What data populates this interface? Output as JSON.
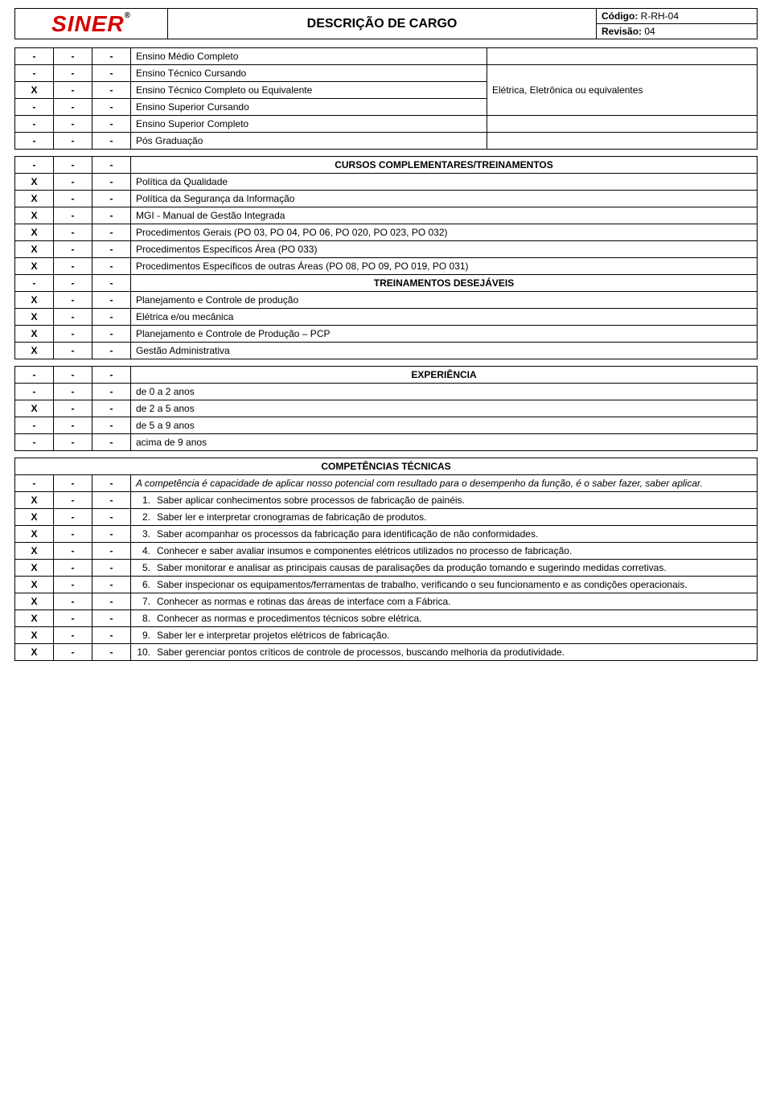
{
  "header": {
    "logo": "SINER",
    "logo_r": "®",
    "title": "DESCRIÇÃO DE CARGO",
    "codigo_label": "Código:",
    "codigo_value": "R-RH-04",
    "revisao_label": "Revisão:",
    "revisao_value": "04"
  },
  "education": {
    "rows": [
      {
        "c1": "-",
        "c2": "-",
        "c3": "-",
        "label": "Ensino Médio Completo",
        "extra": ""
      },
      {
        "c1": "-",
        "c2": "-",
        "c3": "-",
        "label": "Ensino Técnico Cursando",
        "extra": null
      },
      {
        "c1": "X",
        "c2": "-",
        "c3": "-",
        "label": "Ensino Técnico Completo ou Equivalente",
        "extra": "Elétrica, Eletrônica ou equivalentes"
      },
      {
        "c1": "-",
        "c2": "-",
        "c3": "-",
        "label": "Ensino Superior Cursando",
        "extra": null
      },
      {
        "c1": "-",
        "c2": "-",
        "c3": "-",
        "label": "Ensino Superior Completo",
        "extra": ""
      },
      {
        "c1": "-",
        "c2": "-",
        "c3": "-",
        "label": "Pós Graduação",
        "extra": ""
      }
    ]
  },
  "courses": {
    "header": "CURSOS COMPLEMENTARES/TREINAMENTOS",
    "header_marks": [
      "-",
      "-",
      "-"
    ],
    "rows": [
      {
        "c1": "X",
        "c2": "-",
        "c3": "-",
        "label": "Política da Qualidade"
      },
      {
        "c1": "X",
        "c2": "-",
        "c3": "-",
        "label": "Política da Segurança da Informação"
      },
      {
        "c1": "X",
        "c2": "-",
        "c3": "-",
        "label": "MGI - Manual de Gestão Integrada"
      },
      {
        "c1": "X",
        "c2": "-",
        "c3": "-",
        "label": "Procedimentos Gerais (PO 03, PO 04, PO 06, PO 020, PO 023, PO 032)"
      },
      {
        "c1": "X",
        "c2": "-",
        "c3": "-",
        "label": "Procedimentos Específicos Área (PO 033)"
      },
      {
        "c1": "X",
        "c2": "-",
        "c3": "-",
        "label": "Procedimentos Específicos de outras Áreas (PO 08, PO 09, PO 019, PO 031)"
      }
    ],
    "subheader": "TREINAMENTOS DESEJÁVEIS",
    "subheader_marks": [
      "-",
      "-",
      "-"
    ],
    "rows2": [
      {
        "c1": "X",
        "c2": "-",
        "c3": "-",
        "label": "Planejamento e Controle de produção"
      },
      {
        "c1": "X",
        "c2": "-",
        "c3": "-",
        "label": "Elétrica e/ou mecânica"
      },
      {
        "c1": "X",
        "c2": "-",
        "c3": "-",
        "label": "Planejamento e Controle de Produção – PCP"
      },
      {
        "c1": "X",
        "c2": "-",
        "c3": "-",
        "label": "Gestão Administrativa"
      }
    ]
  },
  "experience": {
    "header": "EXPERIÊNCIA",
    "header_marks": [
      "-",
      "-",
      "-"
    ],
    "rows": [
      {
        "c1": "-",
        "c2": "-",
        "c3": "-",
        "label": "de 0 a 2 anos"
      },
      {
        "c1": "X",
        "c2": "-",
        "c3": "-",
        "label": "de 2 a 5 anos"
      },
      {
        "c1": "-",
        "c2": "-",
        "c3": "-",
        "label": "de 5 a 9 anos"
      },
      {
        "c1": "-",
        "c2": "-",
        "c3": "-",
        "label": "acima de 9 anos"
      }
    ]
  },
  "competencies": {
    "header": "COMPETÊNCIAS TÉCNICAS",
    "intro_marks": [
      "-",
      "-",
      "-"
    ],
    "intro": "A competência é capacidade de aplicar nosso potencial com resultado para o desempenho da função, é o saber fazer, saber aplicar.",
    "rows": [
      {
        "c1": "X",
        "c2": "-",
        "c3": "-",
        "n": "1.",
        "text": "Saber aplicar conhecimentos sobre processos de fabricação de painéis."
      },
      {
        "c1": "X",
        "c2": "-",
        "c3": "-",
        "n": "2.",
        "text": "Saber ler e interpretar cronogramas de fabricação de produtos."
      },
      {
        "c1": "X",
        "c2": "-",
        "c3": "-",
        "n": "3.",
        "text": "Saber acompanhar os processos da fabricação para identificação de não conformidades."
      },
      {
        "c1": "X",
        "c2": "-",
        "c3": "-",
        "n": "4.",
        "text": "Conhecer e saber avaliar insumos e componentes elétricos utilizados no processo de fabricação."
      },
      {
        "c1": "X",
        "c2": "-",
        "c3": "-",
        "n": "5.",
        "text": "Saber monitorar e analisar as principais causas de paralisações da produção tomando e sugerindo medidas corretivas."
      },
      {
        "c1": "X",
        "c2": "-",
        "c3": "-",
        "n": "6.",
        "text": "Saber inspecionar os equipamentos/ferramentas de trabalho, verificando o seu funcionamento e as condições operacionais."
      },
      {
        "c1": "X",
        "c2": "-",
        "c3": "-",
        "n": "7.",
        "text": "Conhecer as normas e rotinas das áreas de interface com a Fábrica."
      },
      {
        "c1": "X",
        "c2": "-",
        "c3": "-",
        "n": "8.",
        "text": "Conhecer as normas e procedimentos técnicos sobre elétrica."
      },
      {
        "c1": "X",
        "c2": "-",
        "c3": "-",
        "n": "9.",
        "text": "Saber ler e interpretar projetos elétricos de fabricação."
      },
      {
        "c1": "X",
        "c2": "-",
        "c3": "-",
        "n": "10.",
        "text": "Saber gerenciar pontos críticos de controle de processos, buscando melhoria da produtividade."
      }
    ]
  }
}
